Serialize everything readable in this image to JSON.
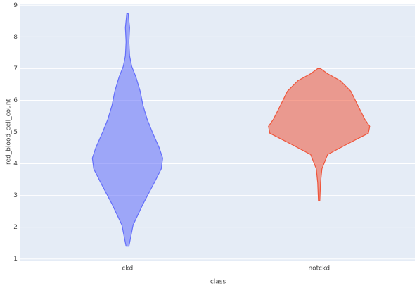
{
  "chart_data": {
    "type": "violin",
    "x_label": "class",
    "y_label": "red_blood_cell_count",
    "categories": [
      "ckd",
      "notckd"
    ],
    "ylim": [
      0.95,
      9.05
    ],
    "yticks": [
      1,
      2,
      3,
      4,
      5,
      6,
      7,
      8,
      9
    ],
    "grid": true,
    "series": [
      {
        "name": "ckd",
        "color": "#636efa",
        "y": [
          1.4,
          2.07,
          2.73,
          3.4,
          3.84,
          4.18,
          4.51,
          4.96,
          5.4,
          5.84,
          6.29,
          6.73,
          7.07,
          7.4,
          7.84,
          8.29,
          8.73
        ],
        "density": [
          2,
          8,
          22,
          38,
          48,
          50,
          45,
          36,
          28,
          22,
          18,
          12,
          6,
          3,
          2,
          3,
          1
        ]
      },
      {
        "name": "notckd",
        "color": "#ef553b",
        "y": [
          2.84,
          3.4,
          3.84,
          4.29,
          4.62,
          4.96,
          5.18,
          5.4,
          5.84,
          6.29,
          6.62,
          6.84,
          7.0
        ],
        "density": [
          1,
          2,
          4,
          12,
          40,
          70,
          72,
          65,
          55,
          45,
          30,
          12,
          2
        ]
      }
    ]
  }
}
